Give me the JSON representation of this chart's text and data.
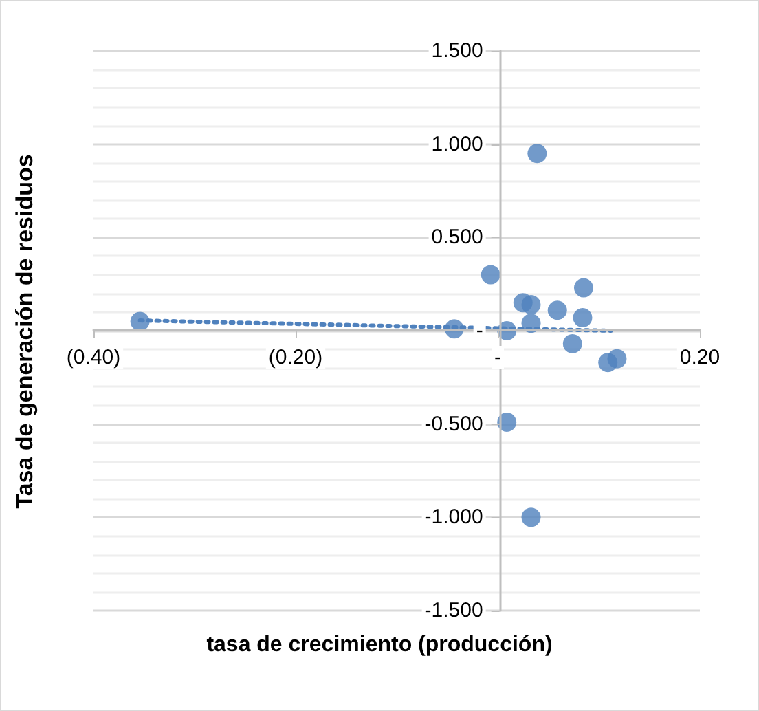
{
  "chart_data": {
    "type": "scatter",
    "xlabel": "tasa de crecimiento (producción)",
    "ylabel": "Tasa de generación de residuos",
    "xlim": [
      -0.4,
      0.2
    ],
    "xticks": [
      {
        "value": -0.4,
        "label": "(0.40)"
      },
      {
        "value": -0.2,
        "label": "(0.20)"
      },
      {
        "value": 0,
        "label": "-"
      },
      {
        "value": 0.2,
        "label": "0.20"
      }
    ],
    "ylim": [
      -1.5,
      1.5
    ],
    "yticks": [
      {
        "value": -1.5,
        "label": "-1.500"
      },
      {
        "value": -1.4,
        "label": null
      },
      {
        "value": -1.3,
        "label": null
      },
      {
        "value": -1.2,
        "label": null
      },
      {
        "value": -1.1,
        "label": null
      },
      {
        "value": -1.0,
        "label": "-1.000"
      },
      {
        "value": -0.9,
        "label": null
      },
      {
        "value": -0.8,
        "label": null
      },
      {
        "value": -0.7,
        "label": null
      },
      {
        "value": -0.6,
        "label": null
      },
      {
        "value": -0.5,
        "label": "-0.500"
      },
      {
        "value": -0.4,
        "label": null
      },
      {
        "value": -0.3,
        "label": null
      },
      {
        "value": -0.2,
        "label": null
      },
      {
        "value": -0.1,
        "label": null
      },
      {
        "value": 0,
        "label": "-"
      },
      {
        "value": 0.1,
        "label": null
      },
      {
        "value": 0.2,
        "label": null
      },
      {
        "value": 0.3,
        "label": null
      },
      {
        "value": 0.4,
        "label": null
      },
      {
        "value": 0.5,
        "label": "0.500"
      },
      {
        "value": 0.6,
        "label": null
      },
      {
        "value": 0.7,
        "label": null
      },
      {
        "value": 0.8,
        "label": null
      },
      {
        "value": 0.9,
        "label": null
      },
      {
        "value": 1.0,
        "label": "1.000"
      },
      {
        "value": 1.1,
        "label": null
      },
      {
        "value": 1.2,
        "label": null
      },
      {
        "value": 1.3,
        "label": null
      },
      {
        "value": 1.4,
        "label": null
      },
      {
        "value": 1.5,
        "label": "1.500"
      }
    ],
    "grid": "y",
    "series": [
      {
        "type": "scatter",
        "color": "#4f81bd",
        "marker": "circle",
        "x": [
          -0.354,
          -0.043,
          -0.007,
          0.039,
          0.025,
          0.033,
          0.033,
          0.009,
          0.059,
          0.085,
          0.084,
          0.074,
          0.109,
          0.118,
          0.009,
          0.033
        ],
        "values": [
          0.05,
          0.01,
          0.3,
          0.95,
          0.15,
          0.14,
          0.04,
          0.0,
          0.11,
          0.23,
          0.07,
          -0.07,
          -0.17,
          -0.15,
          -0.49,
          -1.0
        ]
      },
      {
        "type": "line",
        "color": "#4f81bd",
        "line_style": "dotted",
        "x": [
          -0.354,
          0.112
        ],
        "values": [
          0.055,
          0.0
        ]
      }
    ]
  }
}
